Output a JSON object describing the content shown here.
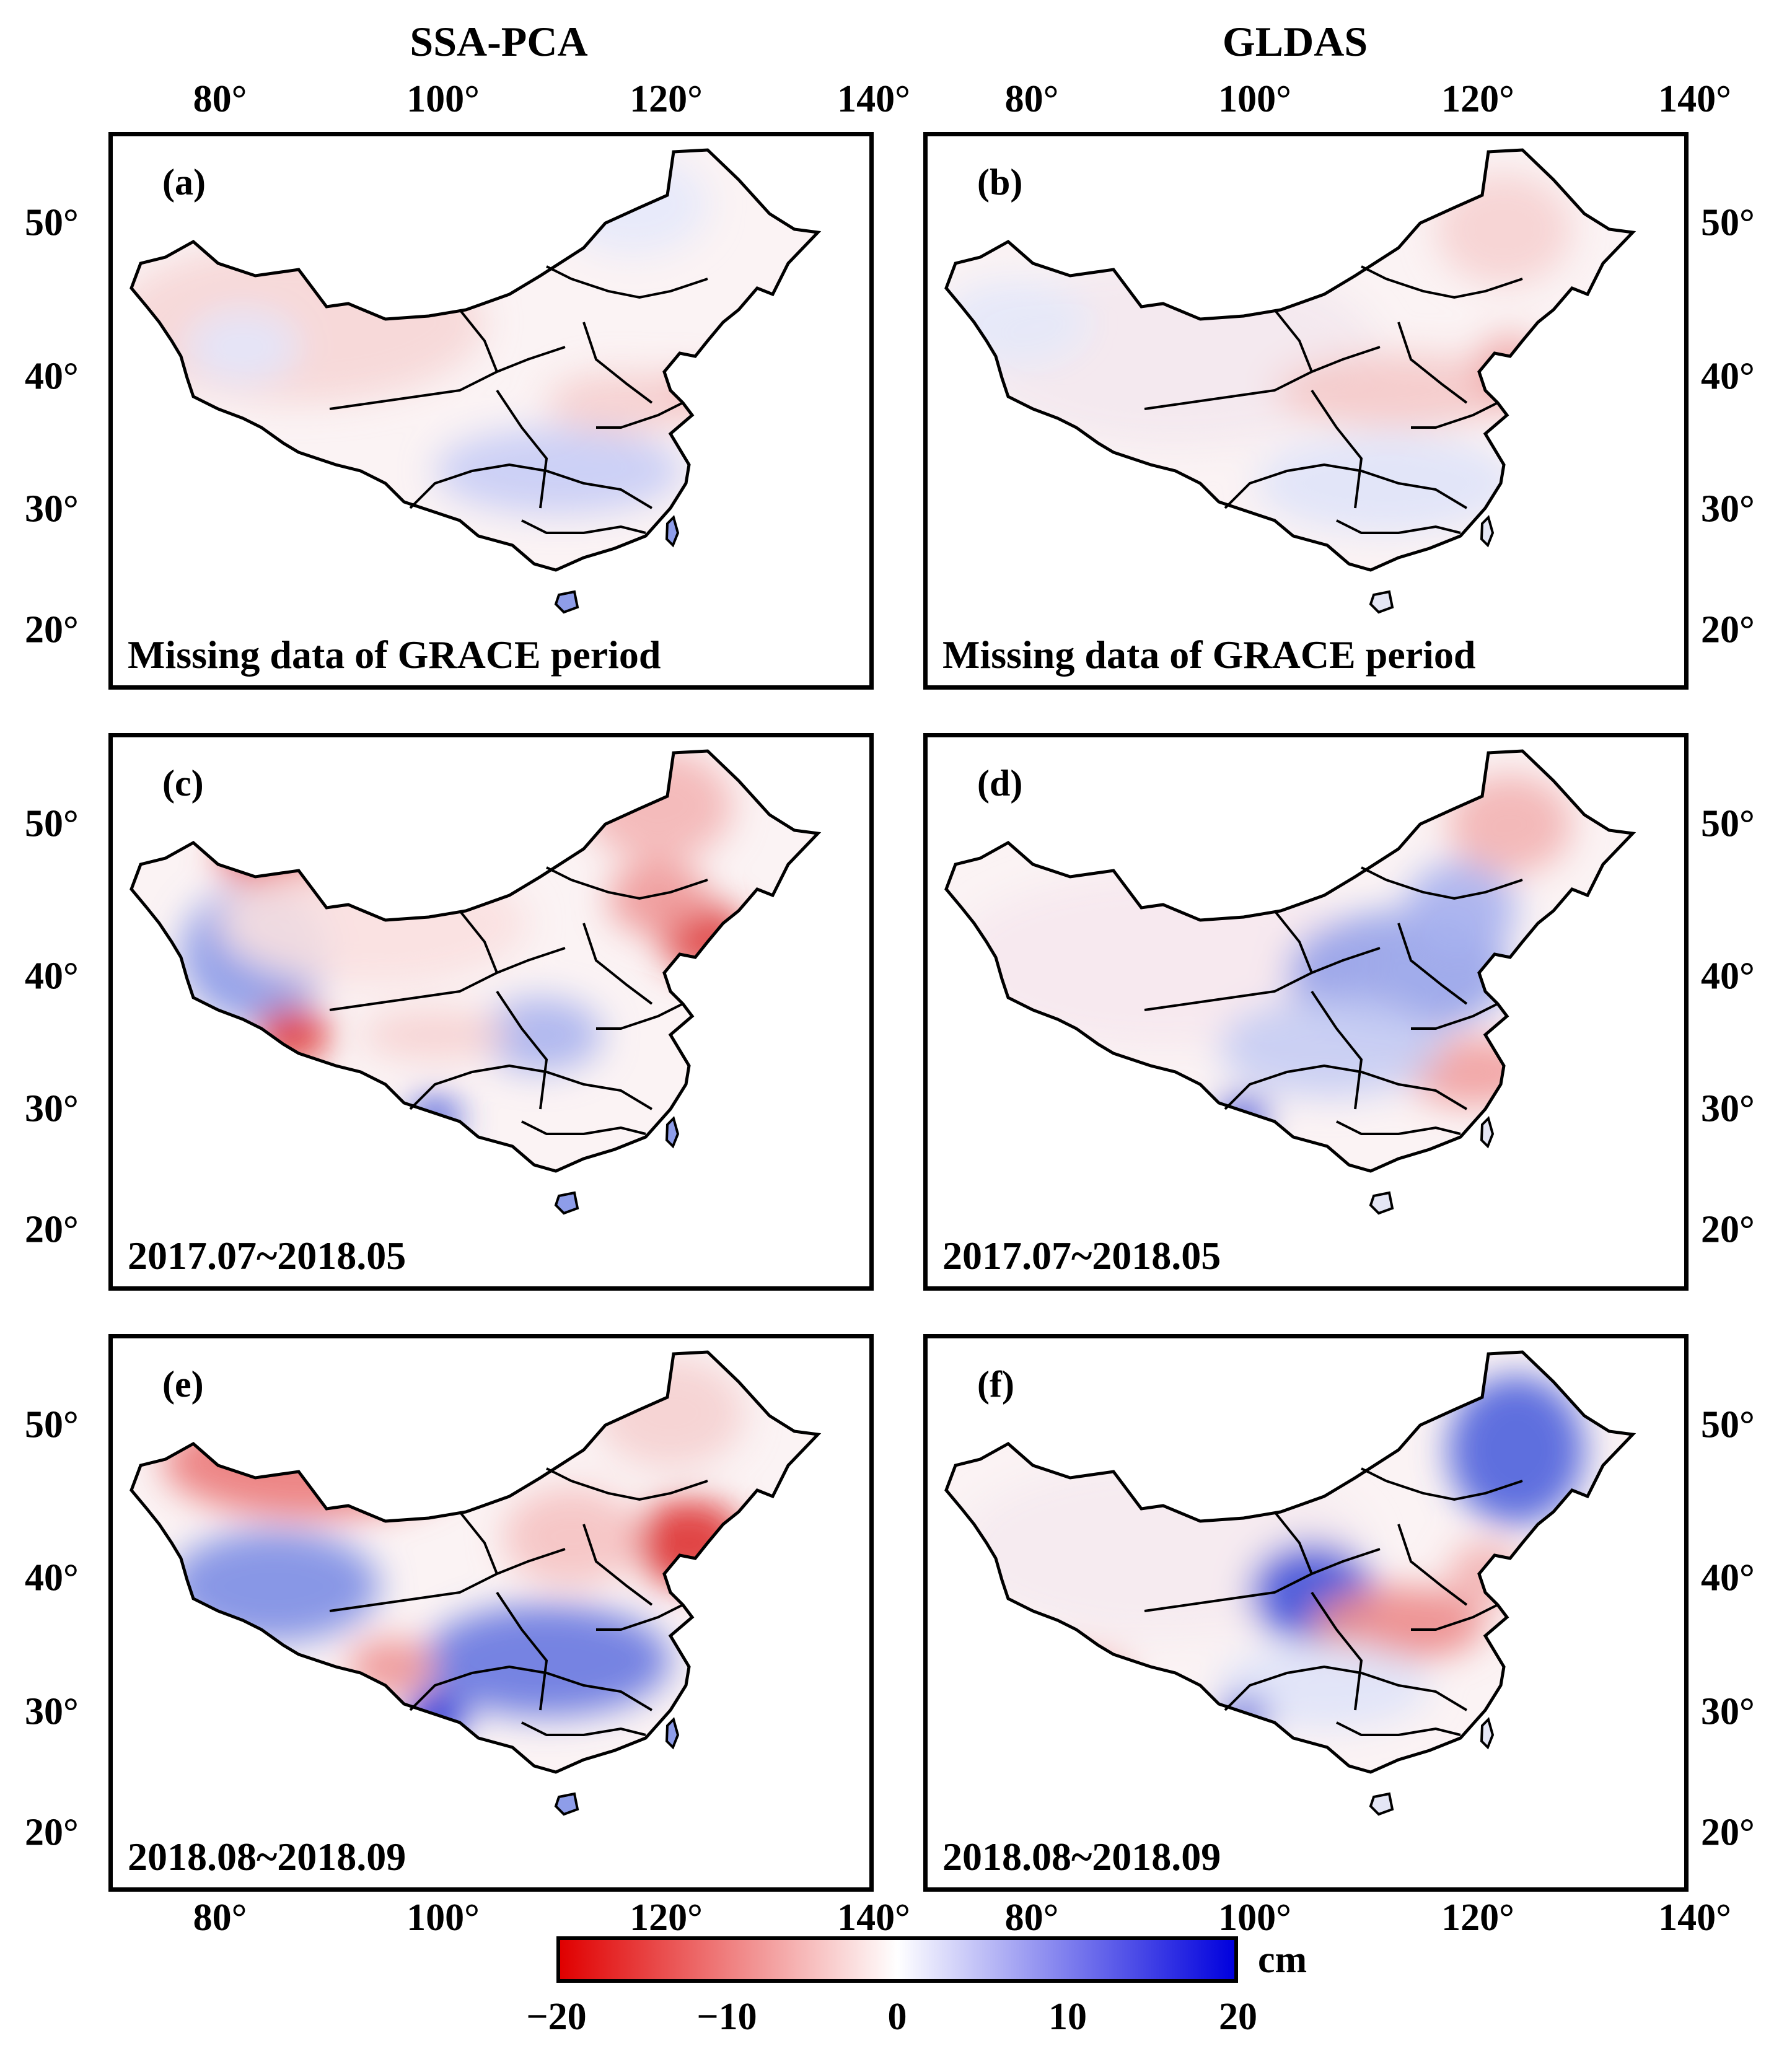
{
  "columns": [
    {
      "title": "SSA-PCA"
    },
    {
      "title": "GLDAS"
    }
  ],
  "lon_ticks": [
    "80°",
    "100°",
    "120°",
    "140°"
  ],
  "lat_ticks": [
    "50°",
    "40°",
    "30°",
    "20°"
  ],
  "panels": [
    {
      "label": "(a)",
      "caption": "Missing data of GRACE period",
      "col": 0,
      "row": 0
    },
    {
      "label": "(b)",
      "caption": "Missing data of GRACE period",
      "col": 1,
      "row": 0
    },
    {
      "label": "(c)",
      "caption": "2017.07~2018.05",
      "col": 0,
      "row": 1
    },
    {
      "label": "(d)",
      "caption": "2017.07~2018.05",
      "col": 1,
      "row": 1
    },
    {
      "label": "(e)",
      "caption": "2018.08~2018.09",
      "col": 0,
      "row": 2
    },
    {
      "label": "(f)",
      "caption": "2018.08~2018.09",
      "col": 1,
      "row": 2
    }
  ],
  "colorbar": {
    "unit": "cm",
    "ticks": [
      "−20",
      "−10",
      "0",
      "10",
      "20"
    ],
    "min": -20,
    "max": 20,
    "colors": [
      "#e00000",
      "#ffffff",
      "#0000dd"
    ]
  }
}
